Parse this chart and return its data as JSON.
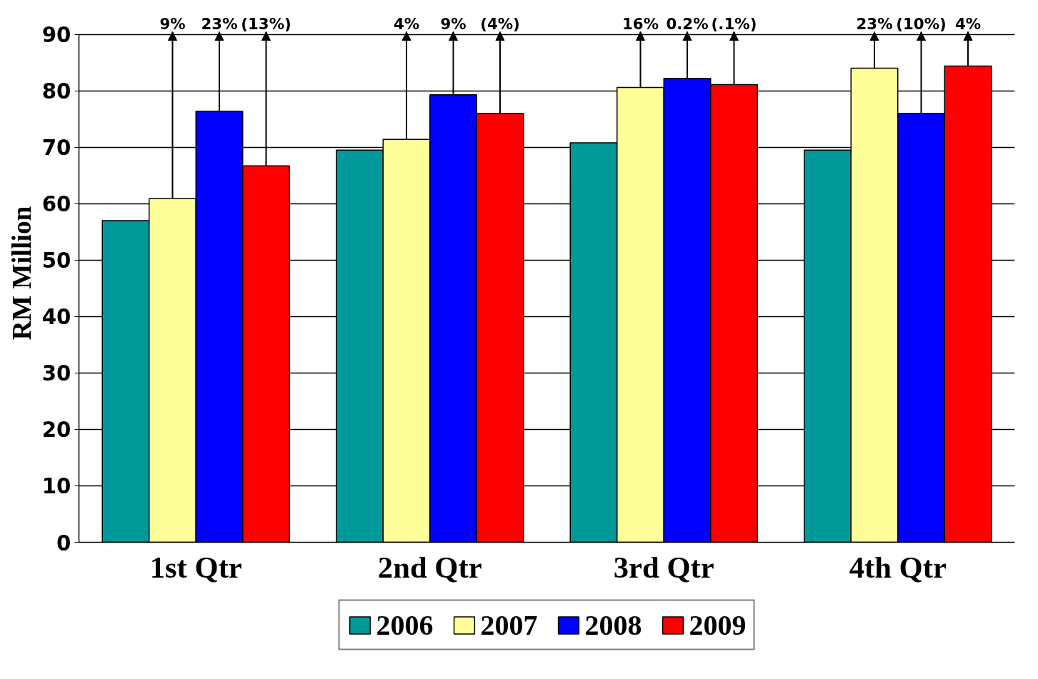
{
  "chart_data": {
    "type": "bar",
    "ylabel": "RM Million",
    "categories": [
      "1st Qtr",
      "2nd Qtr",
      "3rd Qtr",
      "4th Qtr"
    ],
    "series": [
      {
        "name": "2006",
        "color": "#009999",
        "values": [
          57.0,
          69.5,
          70.8,
          69.5
        ]
      },
      {
        "name": "2007",
        "color": "#ffff99",
        "values": [
          60.9,
          71.4,
          80.6,
          84.0
        ]
      },
      {
        "name": "2008",
        "color": "#0000ff",
        "values": [
          76.4,
          79.3,
          82.2,
          76.0
        ]
      },
      {
        "name": "2009",
        "color": "#ff0000",
        "values": [
          66.7,
          76.0,
          81.1,
          84.4
        ]
      }
    ],
    "ylim": [
      0,
      90
    ],
    "yticks": [
      0,
      10,
      20,
      30,
      40,
      50,
      60,
      70,
      80,
      90
    ],
    "grid": "y",
    "legend": "bottom",
    "annotations": [
      "9%",
      "23%",
      "(13%)",
      "4%",
      "9%",
      "(4%)",
      "16%",
      "0.2%",
      "(.1%)",
      "23%",
      "(10%)",
      "4%"
    ]
  }
}
